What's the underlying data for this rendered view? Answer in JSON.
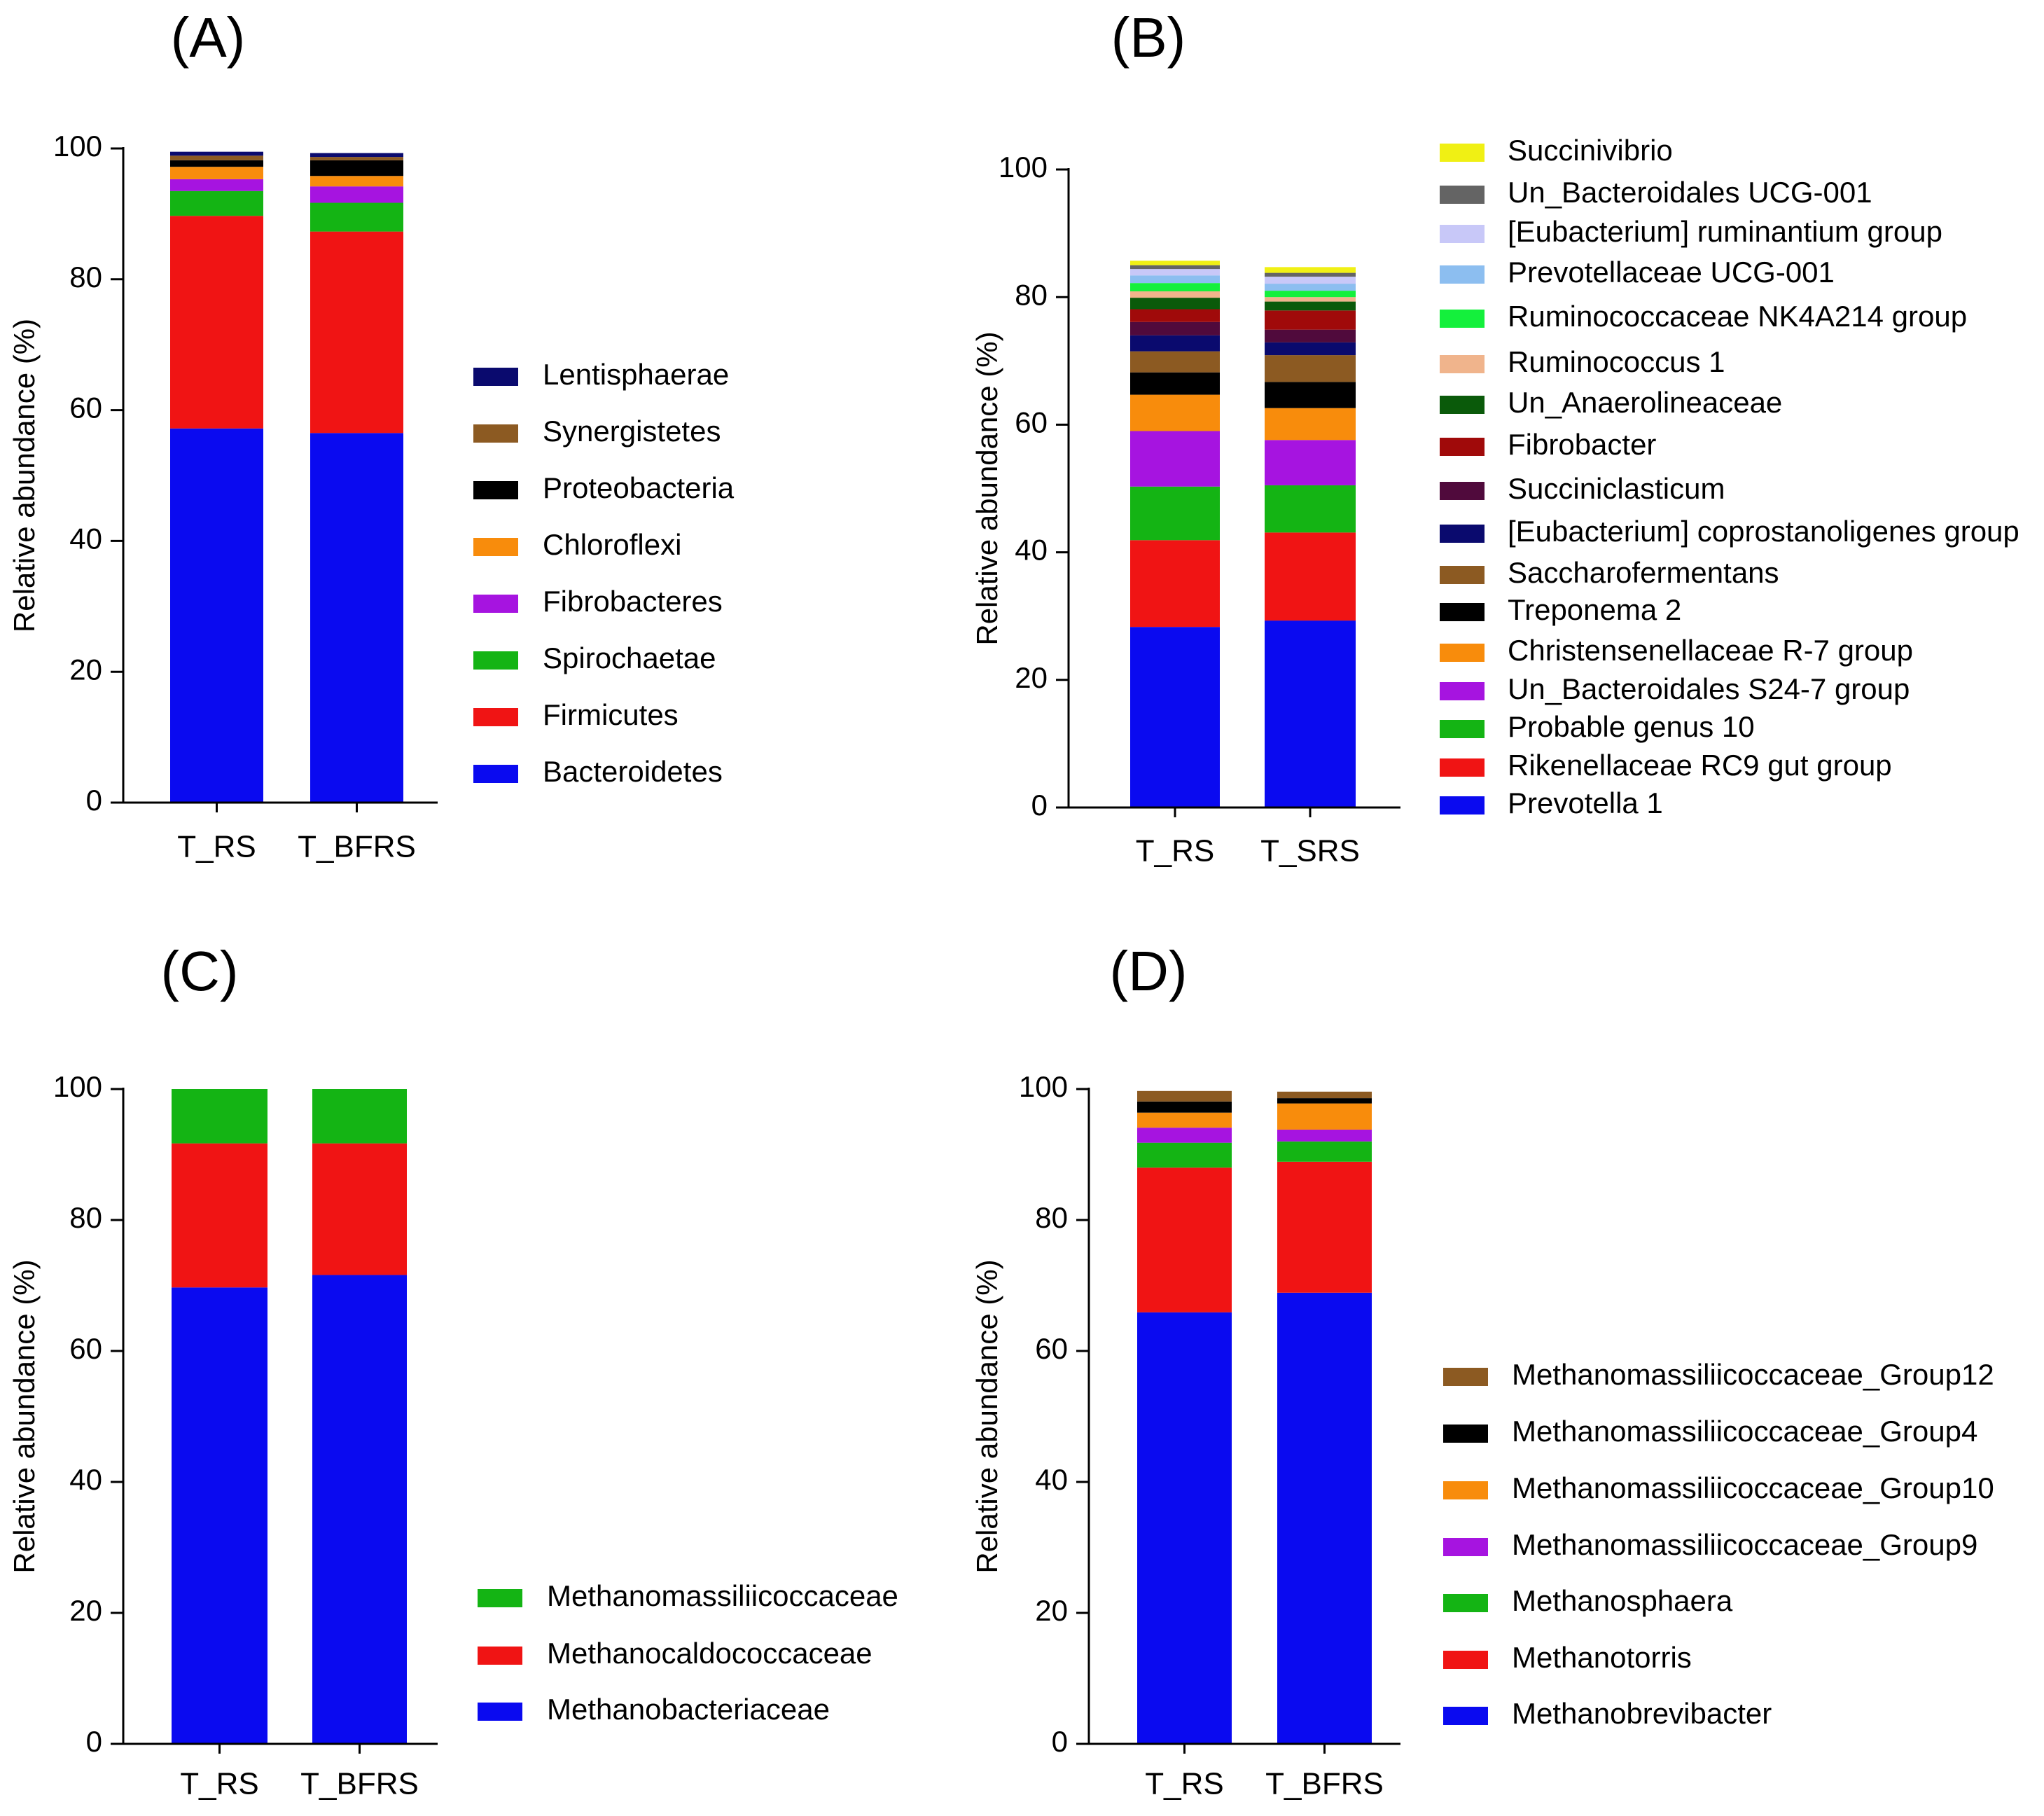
{
  "chart_data": [
    {
      "panel": "(A)",
      "type": "bar",
      "stacked": true,
      "ylabel": "Relative abundance (%)",
      "ylim": [
        0,
        100
      ],
      "yticks": [
        0,
        20,
        40,
        60,
        80,
        100
      ],
      "categories": [
        "T_RS",
        "T_BFRS"
      ],
      "series": [
        {
          "name": "Bacteroidetes",
          "color": "#0a0af0",
          "values": [
            57.2,
            56.5
          ]
        },
        {
          "name": "Firmicutes",
          "color": "#f01414",
          "values": [
            32.5,
            30.8
          ]
        },
        {
          "name": "Spirochaetae",
          "color": "#14b414",
          "values": [
            3.8,
            4.4
          ]
        },
        {
          "name": "Fibrobacteres",
          "color": "#a614e0",
          "values": [
            1.8,
            2.5
          ]
        },
        {
          "name": "Chloroflexi",
          "color": "#f88c0c",
          "values": [
            1.9,
            1.6
          ]
        },
        {
          "name": "Proteobacteria",
          "color": "#000000",
          "values": [
            1.0,
            2.4
          ]
        },
        {
          "name": "Synergistetes",
          "color": "#8c5a22",
          "values": [
            0.7,
            0.5
          ]
        },
        {
          "name": "Lentisphaerae",
          "color": "#0a0a6e",
          "values": [
            0.6,
            0.6
          ]
        }
      ]
    },
    {
      "panel": "(B)",
      "type": "bar",
      "stacked": true,
      "ylabel": "Relative abundance (%)",
      "ylim": [
        0,
        100
      ],
      "yticks": [
        0,
        20,
        40,
        60,
        80,
        100
      ],
      "categories": [
        "T_RS",
        "T_SRS"
      ],
      "series": [
        {
          "name": "Prevotella 1",
          "color": "#0a0af0",
          "values": [
            28.3,
            29.3
          ]
        },
        {
          "name": "Rikenellaceae RC9 gut group",
          "color": "#f01414",
          "values": [
            13.6,
            13.8
          ]
        },
        {
          "name": "Probable genus 10",
          "color": "#14b414",
          "values": [
            8.4,
            7.4
          ]
        },
        {
          "name": "Un_Bacteroidales S24-7 group",
          "color": "#a614e0",
          "values": [
            8.7,
            7.1
          ]
        },
        {
          "name": "Christensenellaceae R-7 group",
          "color": "#f88c0c",
          "values": [
            5.7,
            5.0
          ]
        },
        {
          "name": "Treponema 2",
          "color": "#000000",
          "values": [
            3.5,
            4.1
          ]
        },
        {
          "name": "Saccharofermentans",
          "color": "#8c5a22",
          "values": [
            3.3,
            4.2
          ]
        },
        {
          "name": "[Eubacterium] coprostanoligenes group",
          "color": "#0a0a6e",
          "values": [
            2.5,
            2.0
          ]
        },
        {
          "name": "Succiniclasticum",
          "color": "#500a3c",
          "values": [
            2.1,
            2.0
          ]
        },
        {
          "name": "Fibrobacter",
          "color": "#a00a0a",
          "values": [
            2.0,
            3.0
          ]
        },
        {
          "name": "Un_Anaerolineaceae",
          "color": "#0a5a0a",
          "values": [
            1.8,
            1.4
          ]
        },
        {
          "name": "Ruminococcus 1",
          "color": "#f0b48c",
          "values": [
            1.0,
            0.7
          ]
        },
        {
          "name": "Ruminococcaceae NK4A214 group",
          "color": "#14f03c",
          "values": [
            1.3,
            1.0
          ]
        },
        {
          "name": "Prevotellaceae UCG-001",
          "color": "#8cbef0",
          "values": [
            1.2,
            1.1
          ]
        },
        {
          "name": "[Eubacterium] ruminantium group",
          "color": "#c8c8f8",
          "values": [
            1.0,
            1.1
          ]
        },
        {
          "name": "Un_Bacteroidales UCG-001",
          "color": "#646464",
          "values": [
            0.6,
            0.6
          ]
        },
        {
          "name": "Succinivibrio",
          "color": "#f0f014",
          "values": [
            0.7,
            0.9
          ]
        }
      ]
    },
    {
      "panel": "(C)",
      "type": "bar",
      "stacked": true,
      "ylabel": "Relative abundance (%)",
      "ylim": [
        0,
        100
      ],
      "yticks": [
        0,
        20,
        40,
        60,
        80,
        100
      ],
      "categories": [
        "T_RS",
        "T_BFRS"
      ],
      "series": [
        {
          "name": "Methanobacteriaceae",
          "color": "#0a0af0",
          "values": [
            69.7,
            71.6
          ]
        },
        {
          "name": "Methanocaldococcaceae",
          "color": "#f01414",
          "values": [
            22.0,
            20.1
          ]
        },
        {
          "name": "Methanomassiliicoccaceae",
          "color": "#14b414",
          "values": [
            8.3,
            8.3
          ]
        }
      ]
    },
    {
      "panel": "(D)",
      "type": "bar",
      "stacked": true,
      "ylabel": "Relative abundance (%)",
      "ylim": [
        0,
        100
      ],
      "yticks": [
        0,
        20,
        40,
        60,
        80,
        100
      ],
      "categories": [
        "T_RS",
        "T_BFRS"
      ],
      "series": [
        {
          "name": "Methanobrevibacter",
          "color": "#0a0af0",
          "values": [
            65.9,
            68.9
          ]
        },
        {
          "name": "Methanotorris",
          "color": "#f01414",
          "values": [
            22.1,
            20.0
          ]
        },
        {
          "name": "Methanosphaera",
          "color": "#14b414",
          "values": [
            3.8,
            3.1
          ]
        },
        {
          "name": "Methanomassiliicoccaceae_Group9",
          "color": "#a614e0",
          "values": [
            2.3,
            1.8
          ]
        },
        {
          "name": "Methanomassiliicoccaceae_Group10",
          "color": "#f88c0c",
          "values": [
            2.3,
            4.0
          ]
        },
        {
          "name": "Methanomassiliicoccaceae_Group4",
          "color": "#000000",
          "values": [
            1.7,
            0.8
          ]
        },
        {
          "name": "Methanomassiliicoccaceae_Group12",
          "color": "#8c5a22",
          "values": [
            1.6,
            1.0
          ]
        }
      ]
    }
  ]
}
